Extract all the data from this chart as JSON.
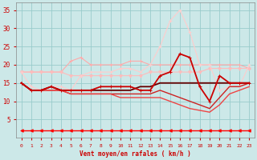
{
  "xlabel": "Vent moyen/en rafales ( km/h )",
  "xlim": [
    -0.5,
    23.5
  ],
  "ylim": [
    0,
    37
  ],
  "yticks": [
    5,
    10,
    15,
    20,
    25,
    30,
    35
  ],
  "xticks": [
    0,
    1,
    2,
    3,
    4,
    5,
    6,
    7,
    8,
    9,
    10,
    11,
    12,
    13,
    14,
    15,
    16,
    17,
    18,
    19,
    20,
    21,
    22,
    23
  ],
  "bg_color": "#cce8e8",
  "grid_color": "#99cccc",
  "lines": [
    {
      "x": [
        0,
        1,
        2,
        3,
        4,
        5,
        6,
        7,
        8,
        9,
        10,
        11,
        12,
        13,
        14,
        15,
        16,
        17,
        18,
        19,
        20,
        21,
        22,
        23
      ],
      "y": [
        18,
        18,
        18,
        18,
        18,
        21,
        22,
        20,
        20,
        20,
        20,
        21,
        21,
        20,
        20,
        20,
        20,
        20,
        20,
        20,
        20,
        20,
        20,
        19
      ],
      "color": "#ffaaaa",
      "lw": 0.8,
      "marker": "+",
      "ms": 3,
      "zorder": 2
    },
    {
      "x": [
        0,
        1,
        2,
        3,
        4,
        5,
        6,
        7,
        8,
        9,
        10,
        11,
        12,
        13,
        14,
        15,
        16,
        17,
        18,
        19,
        20,
        21,
        22,
        23
      ],
      "y": [
        18,
        18,
        18,
        18,
        18,
        17,
        17,
        17,
        17,
        17,
        17,
        17,
        17,
        18,
        18,
        18,
        18,
        18,
        18,
        19,
        19,
        19,
        19,
        19
      ],
      "color": "#ffbbbb",
      "lw": 0.8,
      "marker": "v",
      "ms": 2.5,
      "zorder": 2
    },
    {
      "x": [
        0,
        1,
        2,
        3,
        4,
        5,
        6,
        7,
        8,
        9,
        10,
        11,
        12,
        13,
        14,
        15,
        16,
        17,
        18,
        19,
        20,
        21,
        22,
        23
      ],
      "y": [
        18,
        14,
        13,
        14,
        14,
        13,
        17,
        18,
        18,
        18,
        19,
        19,
        18,
        20,
        25,
        32,
        35,
        29,
        20,
        20,
        13,
        14,
        14,
        20
      ],
      "color": "#ffcccc",
      "lw": 0.8,
      "marker": "+",
      "ms": 2.5,
      "zorder": 2
    },
    {
      "x": [
        0,
        1,
        2,
        3,
        4,
        5,
        6,
        7,
        8,
        9,
        10,
        11,
        12,
        13,
        14,
        15,
        16,
        17,
        18,
        19,
        20,
        21,
        22,
        23
      ],
      "y": [
        15,
        13,
        13,
        14,
        13,
        13,
        13,
        13,
        14,
        14,
        14,
        14,
        13,
        13,
        17,
        18,
        23,
        22,
        14,
        10,
        17,
        15,
        15,
        15
      ],
      "color": "#cc0000",
      "lw": 1.3,
      "marker": "+",
      "ms": 3.5,
      "zorder": 5
    },
    {
      "x": [
        0,
        1,
        2,
        3,
        4,
        5,
        6,
        7,
        8,
        9,
        10,
        11,
        12,
        13,
        14,
        15,
        16,
        17,
        18,
        19,
        20,
        21,
        22,
        23
      ],
      "y": [
        15,
        13,
        13,
        14,
        13,
        13,
        13,
        13,
        13,
        13,
        13,
        13,
        14,
        14,
        15,
        15,
        15,
        15,
        15,
        15,
        15,
        15,
        15,
        15
      ],
      "color": "#660000",
      "lw": 1.3,
      "marker": null,
      "ms": 0,
      "zorder": 4
    },
    {
      "x": [
        0,
        1,
        2,
        3,
        4,
        5,
        6,
        7,
        8,
        9,
        10,
        11,
        12,
        13,
        14,
        15,
        16,
        17,
        18,
        19,
        20,
        21,
        22,
        23
      ],
      "y": [
        15,
        13,
        13,
        13,
        13,
        12,
        12,
        12,
        12,
        12,
        12,
        12,
        12,
        12,
        13,
        12,
        11,
        10,
        9,
        8,
        11,
        14,
        14,
        15
      ],
      "color": "#cc2222",
      "lw": 1.0,
      "marker": null,
      "ms": 0,
      "zorder": 3
    },
    {
      "x": [
        0,
        1,
        2,
        3,
        4,
        5,
        6,
        7,
        8,
        9,
        10,
        11,
        12,
        13,
        14,
        15,
        16,
        17,
        18,
        19,
        20,
        21,
        22,
        23
      ],
      "y": [
        15,
        13,
        13,
        13,
        13,
        12,
        12,
        12,
        12,
        12,
        11,
        11,
        11,
        11,
        11,
        10,
        9,
        8,
        7.5,
        7,
        9,
        12,
        13,
        14
      ],
      "color": "#ee4444",
      "lw": 1.0,
      "marker": null,
      "ms": 0,
      "zorder": 3
    },
    {
      "x": [
        0,
        1,
        2,
        3,
        4,
        5,
        6,
        7,
        8,
        9,
        10,
        11,
        12,
        13,
        14,
        15,
        16,
        17,
        18,
        19,
        20,
        21,
        22,
        23
      ],
      "y": [
        2,
        2,
        2,
        2,
        2,
        2,
        2,
        2,
        2,
        2,
        2,
        2,
        2,
        2,
        2,
        2,
        2,
        2,
        2,
        2,
        2,
        2,
        2,
        2
      ],
      "color": "#ff0000",
      "lw": 1.0,
      "marker": "<",
      "ms": 2.5,
      "zorder": 6
    }
  ]
}
